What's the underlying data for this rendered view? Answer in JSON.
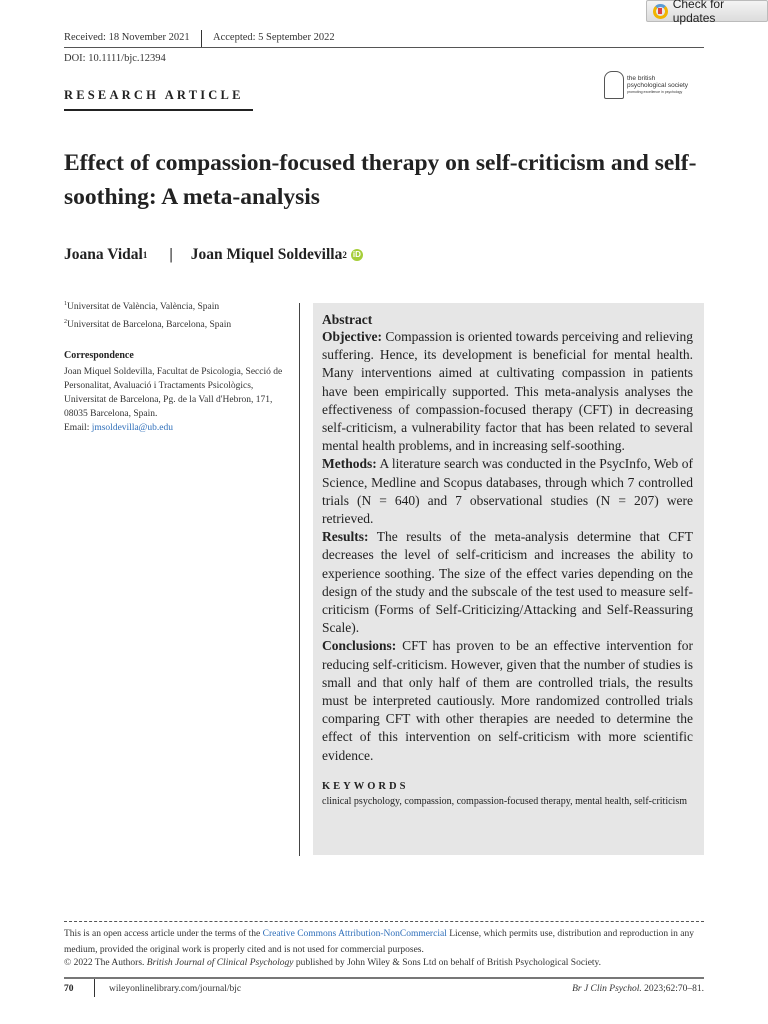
{
  "check_updates": {
    "label": "Check for updates",
    "icon": "crossmark-icon"
  },
  "meta": {
    "received": "Received: 18 November 2021",
    "accepted": "Accepted: 5 September 2022",
    "doi": "DOI: 10.1111/bjc.12394"
  },
  "section_label": "RESEARCH ARTICLE",
  "logo": {
    "line1": "the british",
    "line2": "psychological society",
    "tagline": "promoting excellence in psychology"
  },
  "title": "Effect of compassion-focused therapy on self-criticism and self-soothing: A meta-analysis",
  "authors": [
    {
      "name": "Joana Vidal",
      "sup": "1"
    },
    {
      "name": "Joan Miquel Soldevilla",
      "sup": "2"
    }
  ],
  "author_separator": "|",
  "orcid": "iD",
  "affiliations": [
    {
      "sup": "1",
      "text": "Universitat de València, València, Spain"
    },
    {
      "sup": "2",
      "text": "Universitat de Barcelona, Barcelona, Spain"
    }
  ],
  "correspondence": {
    "heading": "Correspondence",
    "text": "Joan Miquel Soldevilla, Facultat de Psicologia, Secció de Personalitat, Avaluació i Tractaments Psicològics, Universitat de Barcelona, Pg. de la Vall d'Hebron, 171, 08035 Barcelona, Spain.",
    "email_label": "Email: ",
    "email": "jmsoldevilla@ub.edu"
  },
  "abstract": {
    "heading": "Abstract",
    "sections": [
      {
        "label": "Objective:",
        "text": " Compassion is oriented towards perceiving and relieving suffering. Hence, its development is beneficial for mental health. Many interventions aimed at cultivating compassion in patients have been empirically supported. This meta-analysis analyses the effectiveness of compassion-focused therapy (CFT) in decreasing self-criticism, a vulnerability factor that has been related to several mental health problems, and in increasing self-soothing."
      },
      {
        "label": "Methods:",
        "text": "  A literature search was conducted in the PsycInfo, Web of Science, Medline and Scopus databases, through which 7 controlled trials (N = 640) and 7 observational studies (N = 207) were retrieved."
      },
      {
        "label": "Results:",
        "text": " The results of the meta-analysis determine that CFT decreases the level of self-criticism and increases the ability to experience soothing. The size of the effect varies depending on the design of the study and the subscale of the test used to measure self-criticism (Forms of Self-Criticizing/Attacking and Self-Reassuring Scale)."
      },
      {
        "label": "Conclusions:",
        "text": " CFT has proven to be an effective intervention for reducing self-criticism. However, given that the number of studies is small and that only half of them are controlled trials, the results must be interpreted cautiously. More randomized controlled trials comparing CFT with other therapies are needed to determine the effect of this intervention on self-criticism with more scientific evidence."
      }
    ],
    "keywords_heading": "KEYWORDS",
    "keywords": "clinical psychology, compassion, compassion-focused therapy, mental health, self-criticism"
  },
  "license": {
    "pre": "This is an open access article under the terms of the ",
    "link": "Creative Commons Attribution-NonCommercial",
    "post": " License, which permits use, distribution and reproduction in any medium, provided the original work is properly cited and is not used for commercial purposes."
  },
  "copyright": {
    "pre": "© 2022 The Authors. ",
    "journal": "British Journal of Clinical Psychology",
    "post": " published by John Wiley & Sons Ltd on behalf of British Psychological Society."
  },
  "footer": {
    "page": "70",
    "site": "wileyonlinelibrary.com/journal/bjc",
    "citation_journal": "Br J Clin Psychol.",
    "citation_rest": " 2023;62:70–81."
  }
}
